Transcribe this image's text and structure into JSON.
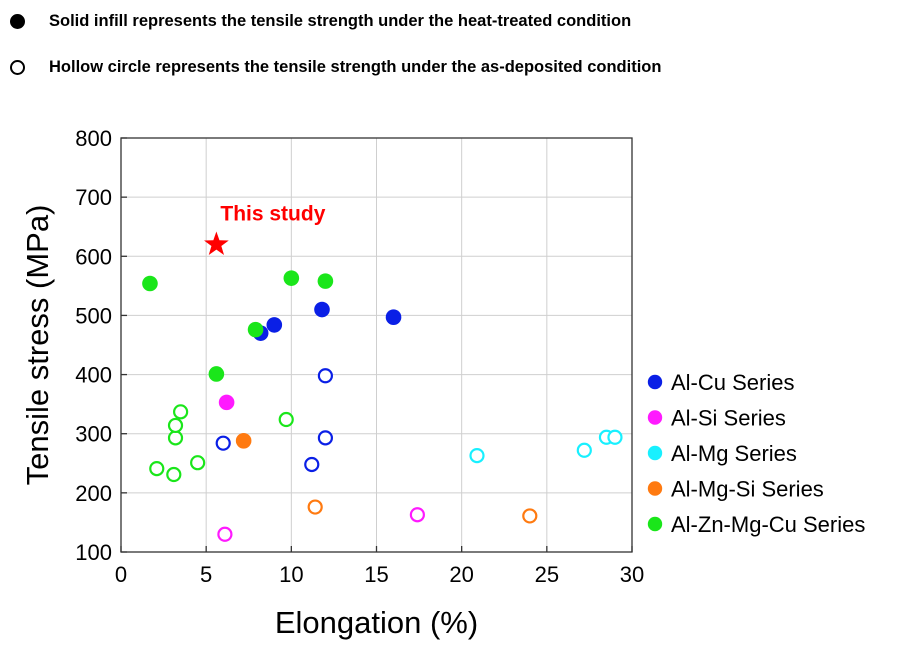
{
  "notes": {
    "solid": "Solid infill represents the tensile strength under the heat-treated condition",
    "hollow": "Hollow circle represents the tensile strength under the as-deposited condition"
  },
  "chart_data": {
    "type": "scatter",
    "title": "",
    "xlabel": "Elongation (%)",
    "ylabel": "Tensile stress (MPa)",
    "xlim": [
      0,
      30
    ],
    "ylim": [
      100,
      800
    ],
    "xticks": [
      0,
      5,
      10,
      15,
      20,
      25,
      30
    ],
    "yticks": [
      100,
      200,
      300,
      400,
      500,
      600,
      700,
      800
    ],
    "grid": true,
    "legend_position": "right",
    "annotation": {
      "text": "This study",
      "x": 5.6,
      "y": 620,
      "color": "#ff0000",
      "marker": "star"
    },
    "series": [
      {
        "name": "Al-Cu Series",
        "color": "#0a1fe6",
        "heat_treated": [
          [
            8.2,
            470
          ],
          [
            9.0,
            484
          ],
          [
            11.8,
            510
          ],
          [
            16.0,
            497
          ]
        ],
        "as_deposited": [
          [
            6.0,
            284
          ],
          [
            11.2,
            248
          ],
          [
            12.0,
            293
          ],
          [
            12.0,
            398
          ]
        ]
      },
      {
        "name": "Al-Si Series",
        "color": "#ff1aff",
        "heat_treated": [
          [
            6.2,
            353
          ]
        ],
        "as_deposited": [
          [
            6.1,
            130
          ],
          [
            17.4,
            163
          ]
        ]
      },
      {
        "name": "Al-Mg Series",
        "color": "#18f0ff",
        "heat_treated": [],
        "as_deposited": [
          [
            20.9,
            263
          ],
          [
            27.2,
            272
          ],
          [
            28.5,
            294
          ],
          [
            29.0,
            294
          ]
        ]
      },
      {
        "name": "Al-Mg-Si Series",
        "color": "#ff7a10",
        "heat_treated": [
          [
            7.2,
            288
          ]
        ],
        "as_deposited": [
          [
            11.4,
            176
          ],
          [
            24.0,
            161
          ]
        ]
      },
      {
        "name": "Al-Zn-Mg-Cu Series",
        "color": "#1ae61a",
        "heat_treated": [
          [
            1.7,
            554
          ],
          [
            5.6,
            401
          ],
          [
            7.9,
            476
          ],
          [
            10.0,
            563
          ],
          [
            12.0,
            558
          ]
        ],
        "as_deposited": [
          [
            2.1,
            241
          ],
          [
            3.1,
            231
          ],
          [
            3.2,
            293
          ],
          [
            3.2,
            314
          ],
          [
            3.5,
            337
          ],
          [
            4.5,
            251
          ],
          [
            9.7,
            324
          ]
        ]
      }
    ]
  }
}
